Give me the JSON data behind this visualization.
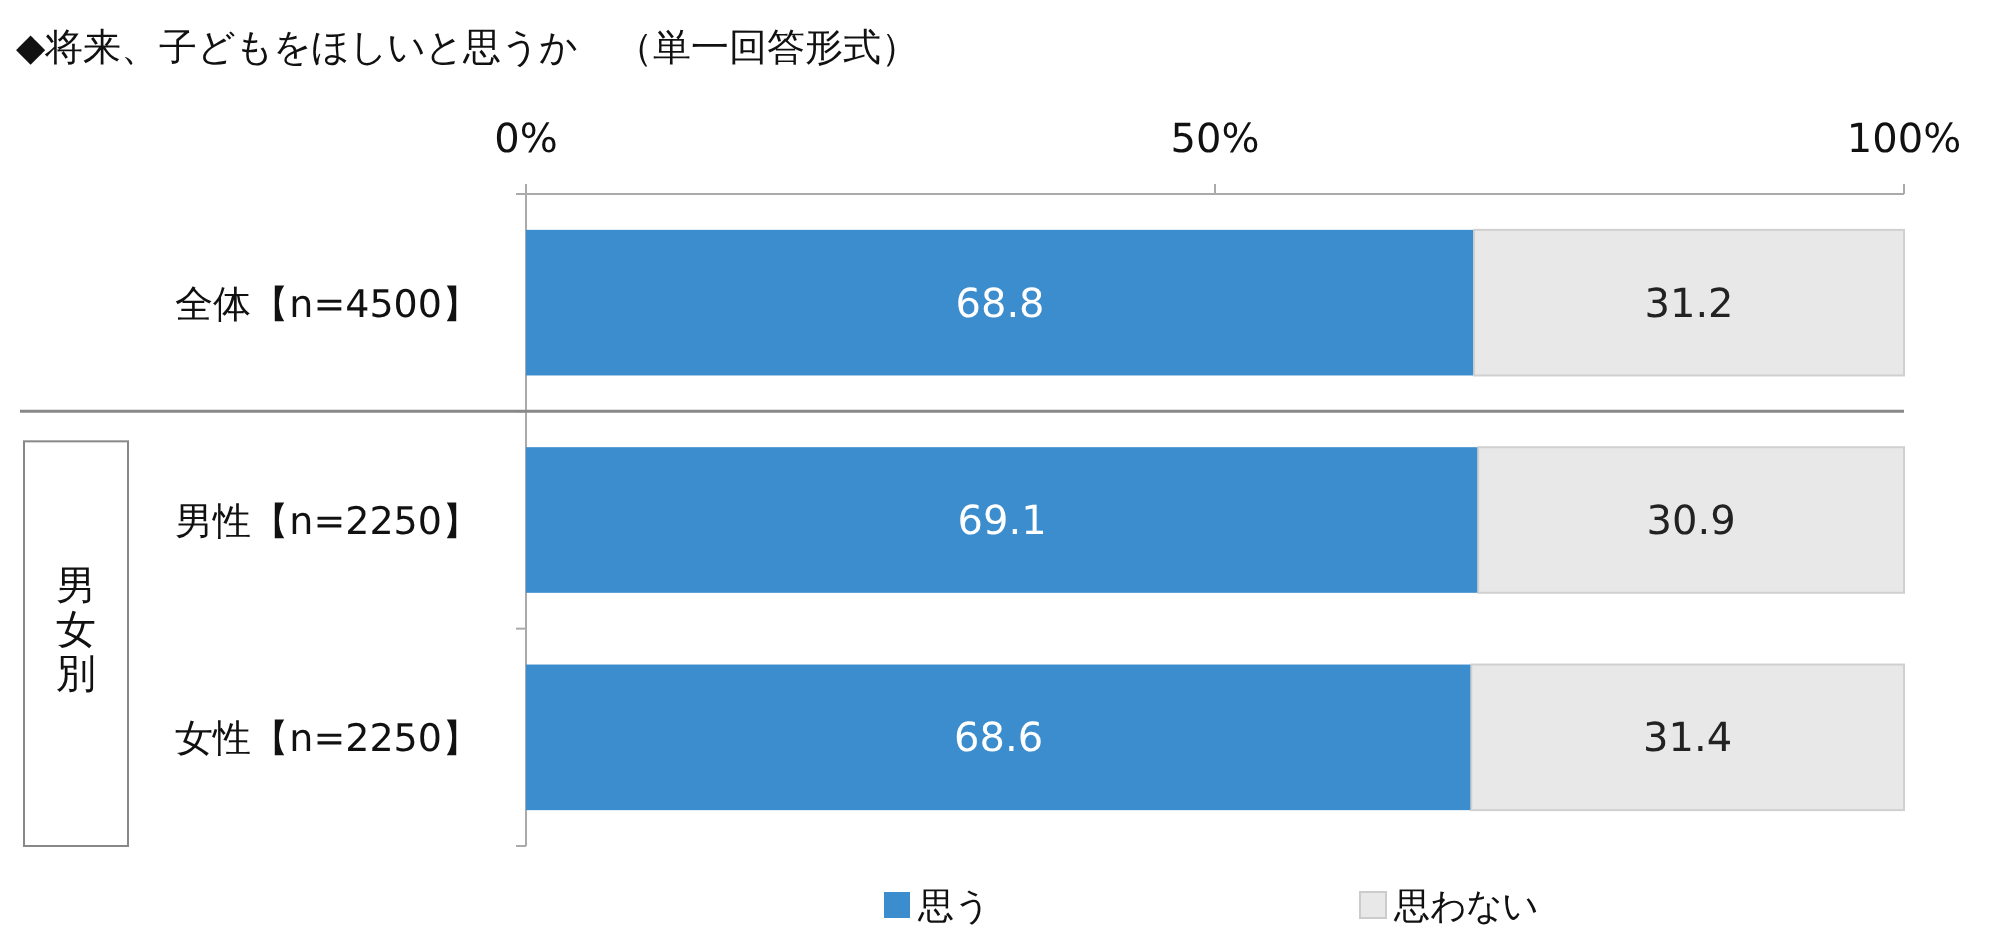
{
  "chart_data": {
    "type": "bar",
    "orientation": "horizontal",
    "stacked": true,
    "title": "◆将来、子どもをほしいと思うか　（単一回答形式）",
    "categories": [
      "全体【n=4500】",
      "男性【n=2250】",
      "女性【n=2250】"
    ],
    "series": [
      {
        "name": "思う",
        "color": "#3b8dcd",
        "values": [
          68.8,
          69.1,
          68.6
        ]
      },
      {
        "name": "思わない",
        "color": "#e8e8e8",
        "values": [
          31.2,
          30.9,
          31.4
        ]
      }
    ],
    "xlim": [
      0,
      100
    ],
    "xticks": [
      {
        "value": 0,
        "label": "0%"
      },
      {
        "value": 50,
        "label": "50%"
      },
      {
        "value": 100,
        "label": "100%"
      }
    ],
    "data_labels": true,
    "legend": "bottom",
    "grid": false,
    "annotations": [
      "男女別"
    ]
  }
}
